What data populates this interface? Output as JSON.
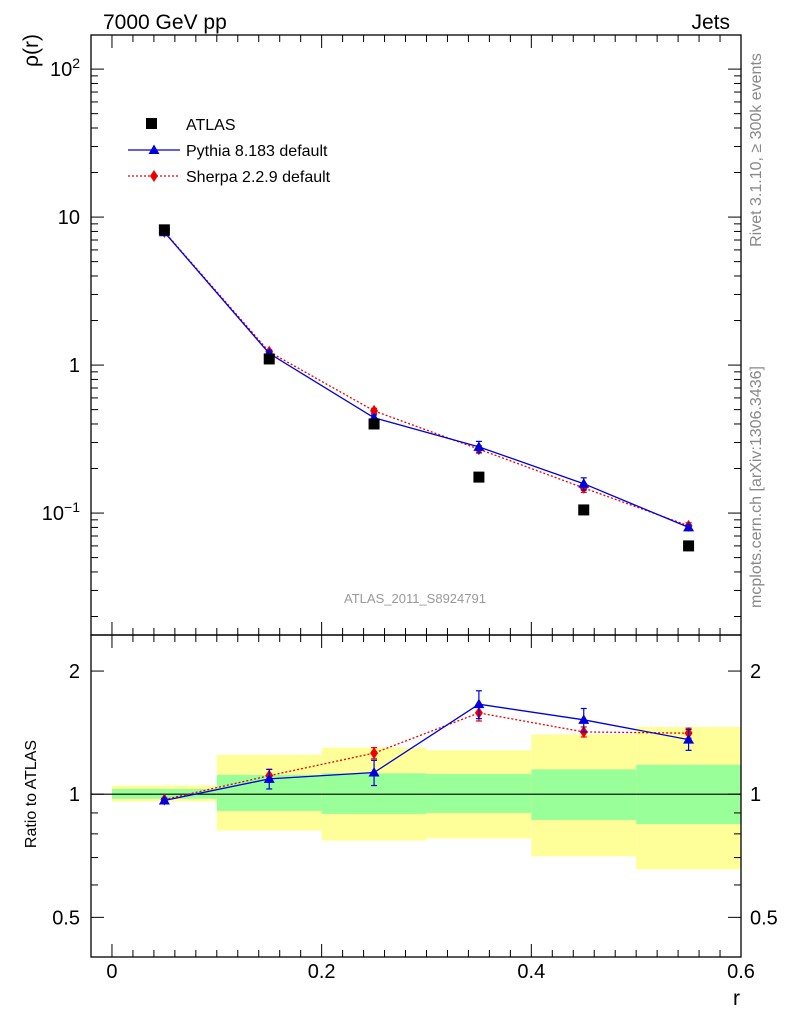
{
  "header": {
    "left_title": "7000 GeV pp",
    "right_title": "Jets",
    "side_text_top": "Rivet 3.1.10, ≥ 300k events",
    "side_text_bottom": "mcplots.cern.ch [arXiv:1306.3436]",
    "analysis_id": "ATLAS_2011_S8924791"
  },
  "colors": {
    "pythia": "#0000dd",
    "sherpa": "#ee0000",
    "atlas": "#000000",
    "band_inner": "#99ff99",
    "band_outer": "#ffff99"
  },
  "chart_data": [
    {
      "type": "line",
      "panel": "main",
      "ylabel": "ρ(r)",
      "yscale": "log",
      "ylim": [
        0.015,
        170
      ],
      "xlim": [
        -0.02,
        0.6
      ],
      "y_ticks": [
        {
          "value": 100,
          "base": "10",
          "exp": "2"
        },
        {
          "value": 10,
          "label": "10"
        },
        {
          "value": 1,
          "label": "1"
        },
        {
          "value": 0.1,
          "base": "10",
          "exp": "−1"
        }
      ],
      "legend_position": "top-left",
      "series": [
        {
          "name": "ATLAS",
          "marker": "square",
          "x": [
            0.05,
            0.15,
            0.25,
            0.35,
            0.45,
            0.55
          ],
          "y": [
            8.2,
            1.1,
            0.4,
            0.175,
            0.105,
            0.06
          ]
        },
        {
          "name": "Pythia 8.183 default",
          "marker": "triangle",
          "line": "solid",
          "x": [
            0.05,
            0.15,
            0.25,
            0.35,
            0.45,
            0.55
          ],
          "y": [
            7.9,
            1.2,
            0.44,
            0.28,
            0.158,
            0.08
          ],
          "err": [
            0.2,
            0.05,
            0.02,
            0.025,
            0.015,
            0.003
          ]
        },
        {
          "name": "Sherpa 2.2.9 default",
          "marker": "diamond",
          "line": "dotted",
          "x": [
            0.05,
            0.15,
            0.25,
            0.35,
            0.45,
            0.55
          ],
          "y": [
            7.95,
            1.23,
            0.49,
            0.27,
            0.148,
            0.082
          ],
          "err": [
            0.15,
            0.04,
            0.02,
            0.015,
            0.01,
            0.004
          ]
        }
      ]
    },
    {
      "type": "line",
      "panel": "ratio",
      "ylabel": "Ratio to ATLAS",
      "xlabel": "r",
      "yscale": "log",
      "ylim": [
        0.4,
        2.45
      ],
      "xlim": [
        -0.02,
        0.6
      ],
      "y_ticks": [
        {
          "value": 2,
          "label": "2"
        },
        {
          "value": 1,
          "label": "1"
        },
        {
          "value": 0.5,
          "label": "0.5"
        }
      ],
      "x_ticks": [
        {
          "value": 0,
          "label": "0"
        },
        {
          "value": 0.2,
          "label": "0.2"
        },
        {
          "value": 0.4,
          "label": "0.4"
        },
        {
          "value": 0.6,
          "label": "0.6"
        }
      ],
      "bands": [
        {
          "x0": 0.0,
          "x1": 0.1,
          "inner": [
            0.975,
            1.03
          ],
          "outer": [
            0.96,
            1.05
          ]
        },
        {
          "x0": 0.1,
          "x1": 0.2,
          "inner": [
            0.91,
            1.115
          ],
          "outer": [
            0.815,
            1.25
          ]
        },
        {
          "x0": 0.2,
          "x1": 0.3,
          "inner": [
            0.895,
            1.125
          ],
          "outer": [
            0.77,
            1.3
          ]
        },
        {
          "x0": 0.3,
          "x1": 0.4,
          "inner": [
            0.9,
            1.12
          ],
          "outer": [
            0.78,
            1.28
          ]
        },
        {
          "x0": 0.4,
          "x1": 0.5,
          "inner": [
            0.865,
            1.15
          ],
          "outer": [
            0.705,
            1.4
          ]
        },
        {
          "x0": 0.5,
          "x1": 0.6,
          "inner": [
            0.845,
            1.18
          ],
          "outer": [
            0.655,
            1.46
          ]
        }
      ],
      "series": [
        {
          "name": "Pythia 8.183 default",
          "marker": "triangle",
          "line": "solid",
          "x": [
            0.05,
            0.15,
            0.25,
            0.35,
            0.45,
            0.55
          ],
          "y": [
            0.965,
            1.09,
            1.13,
            1.66,
            1.52,
            1.36
          ],
          "err": [
            0.012,
            0.06,
            0.08,
            0.13,
            0.1,
            0.08
          ]
        },
        {
          "name": "Sherpa 2.2.9 default",
          "marker": "diamond",
          "line": "dotted",
          "x": [
            0.05,
            0.15,
            0.25,
            0.35,
            0.45,
            0.55
          ],
          "y": [
            0.97,
            1.11,
            1.26,
            1.58,
            1.42,
            1.41
          ],
          "err": [
            0.008,
            0.04,
            0.04,
            0.07,
            0.04,
            0.04
          ]
        }
      ]
    }
  ]
}
